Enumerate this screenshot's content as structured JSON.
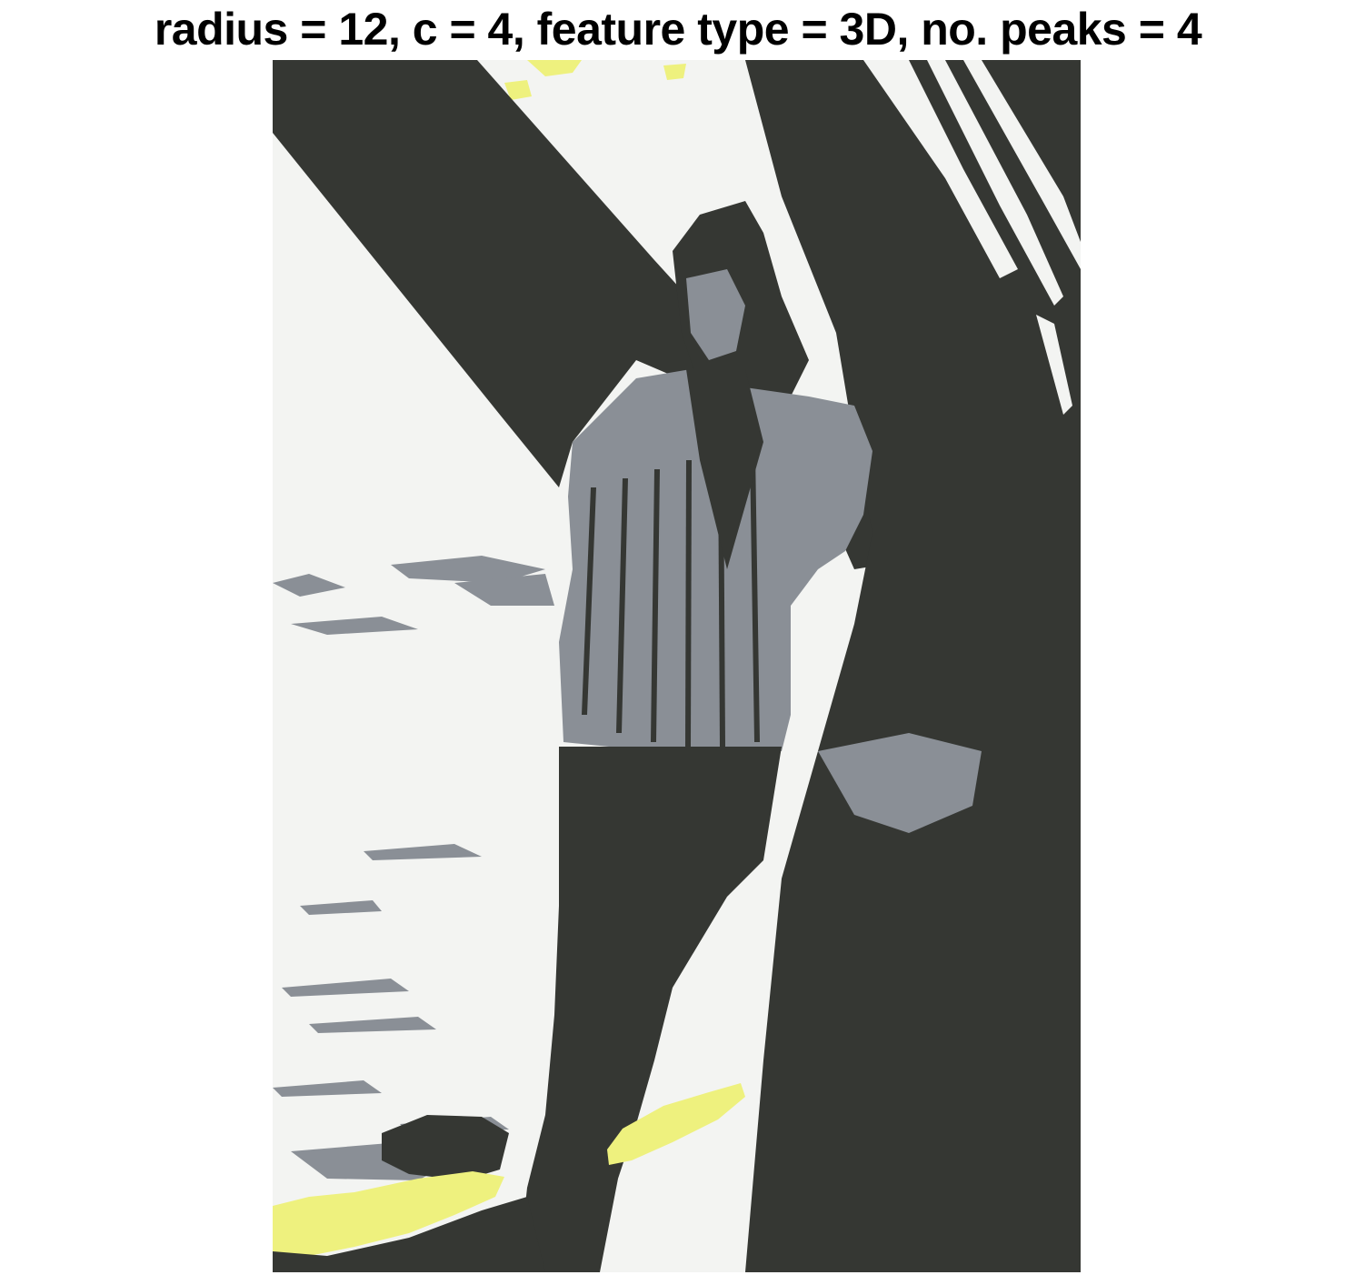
{
  "figure": {
    "title": "radius = 12, c = 4, feature type = 3D, no. peaks = 4"
  },
  "image": {
    "description_subject": "segmented photo of a woman in a knit sweater leaning against a tree by the water",
    "segment_count": 4,
    "palette": {
      "light": "#f3f4f2",
      "dark": "#353733",
      "gray": "#8a8f96",
      "yellow": "#eef17e"
    }
  }
}
